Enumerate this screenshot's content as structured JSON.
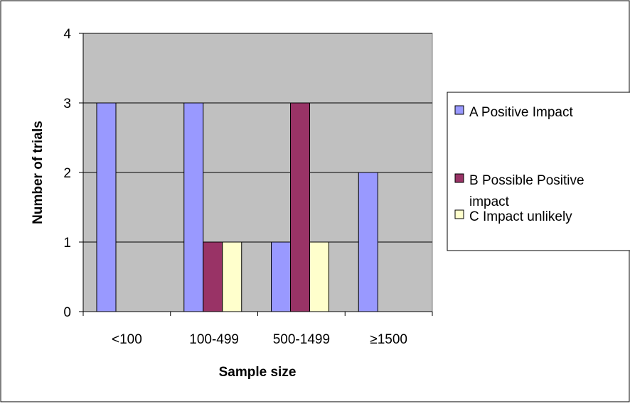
{
  "chart_data": {
    "type": "bar",
    "title": "",
    "xlabel": "Sample size",
    "ylabel": "Number of trials",
    "categories": [
      "<100",
      "100-499",
      "500-1499",
      "≥1500"
    ],
    "series": [
      {
        "name": "A Positive Impact",
        "values": [
          3,
          3,
          1,
          2
        ],
        "color": "#9999ff"
      },
      {
        "name": "B Possible Positive impact",
        "values": [
          0,
          1,
          3,
          0
        ],
        "color": "#993366"
      },
      {
        "name": "C Impact unlikely",
        "values": [
          0,
          1,
          1,
          0
        ],
        "color": "#ffffcc"
      }
    ],
    "ylim": [
      0,
      4
    ],
    "yticks": [
      "0",
      "1",
      "2",
      "3",
      "4"
    ],
    "grid": true,
    "plot_background": "#c0c0c0",
    "legend_position": "right"
  }
}
